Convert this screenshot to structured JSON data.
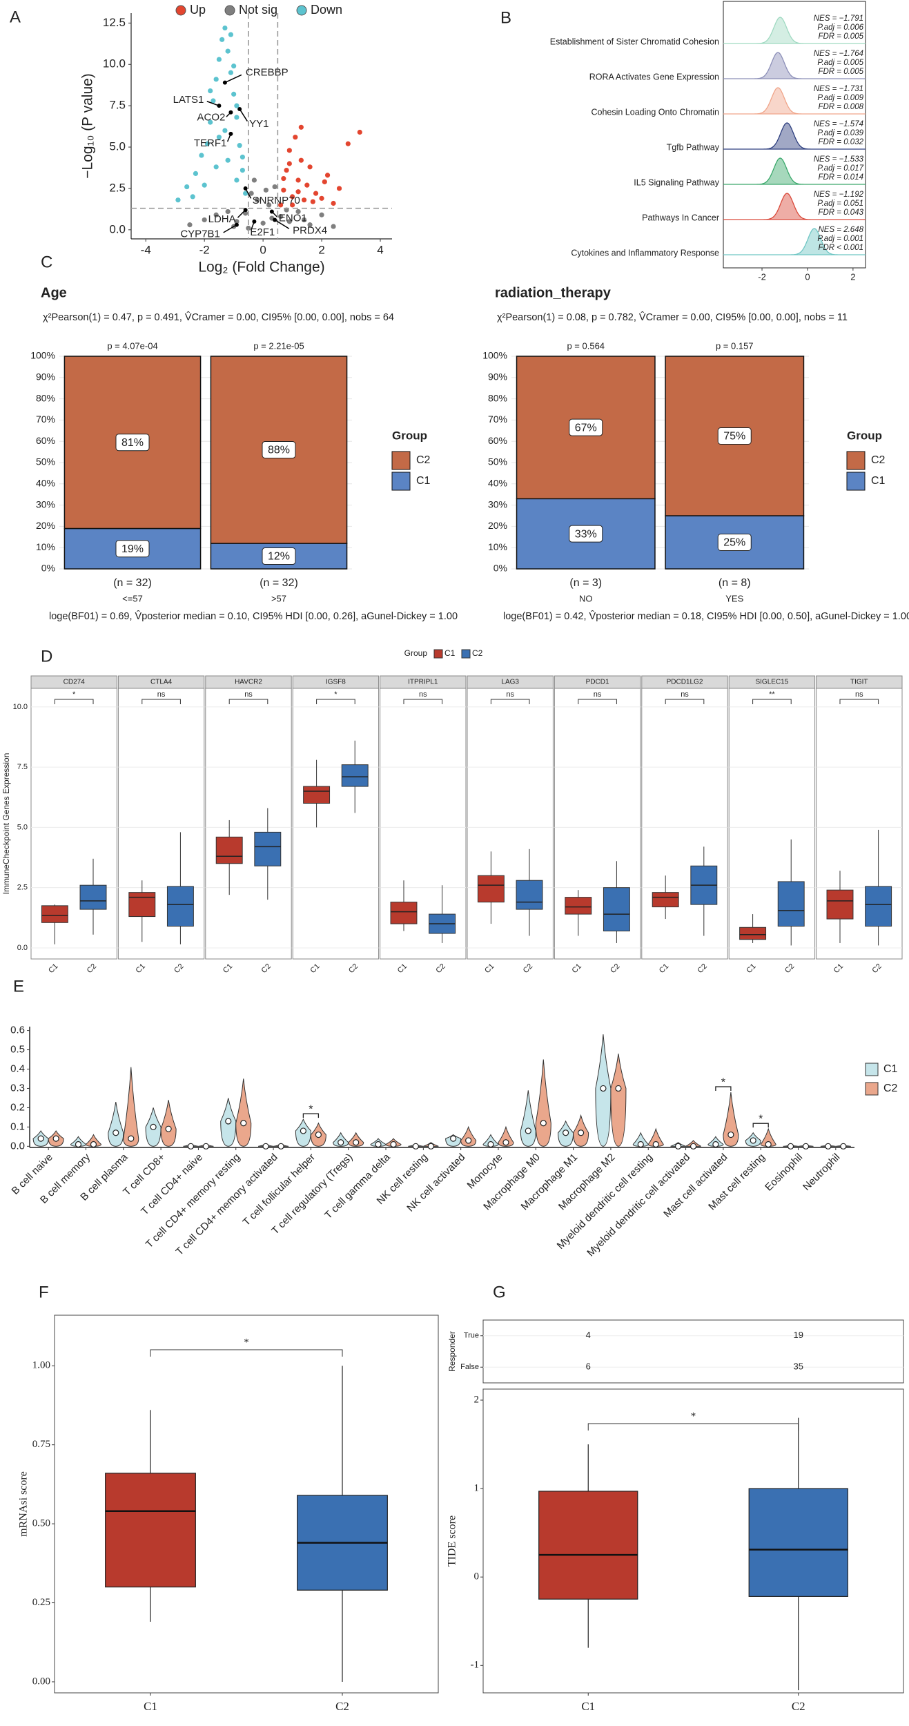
{
  "chart_data": [
    {
      "type": "scatter",
      "panel": "A",
      "xlabel": "Log₂ (Fold Change)",
      "ylabel": "−Log₁₀ (P value)",
      "legend": "top",
      "xlim": [
        -4.5,
        4.4
      ],
      "ylim": [
        -0.55,
        13.1
      ],
      "xticks": [
        -4,
        -2,
        0,
        2,
        4
      ],
      "yticks": [
        {
          "value": 0,
          "label": "0.0"
        },
        2.5,
        {
          "value": 5,
          "label": "5.0"
        },
        7.5,
        {
          "value": 10,
          "label": "10.0"
        },
        12.5
      ],
      "thresholds": {
        "x": [
          -0.5,
          0.5
        ],
        "y": 1.3
      },
      "series": [
        {
          "name": "Up",
          "color": "#e3452f",
          "x": [
            0.6,
            0.7,
            0.8,
            0.9,
            1.0,
            1.1,
            1.2,
            1.3,
            1.4,
            1.5,
            1.6,
            1.8,
            2.0,
            2.2,
            2.4,
            2.6,
            2.9,
            3.3,
            0.7,
            1.0,
            1.3,
            1.7,
            2.1,
            0.9,
            1.2
          ],
          "y": [
            1.5,
            2.4,
            3.6,
            4.8,
            2.0,
            5.6,
            3.0,
            4.2,
            1.8,
            2.7,
            3.8,
            2.2,
            1.9,
            3.3,
            1.6,
            2.5,
            5.2,
            5.9,
            3.1,
            1.5,
            6.2,
            1.7,
            2.9,
            4.0,
            2.3
          ]
        },
        {
          "name": "Not sig",
          "color": "#7f7f7f",
          "x": [
            -2.5,
            -2.0,
            -1.6,
            -1.2,
            -0.9,
            -0.6,
            -0.4,
            -0.2,
            0,
            0.2,
            0.4,
            0.6,
            0.9,
            1.2,
            1.6,
            2.0,
            2.4,
            -0.3,
            0.1,
            0.3,
            -1.0,
            0.8,
            -0.5,
            1.4
          ],
          "y": [
            0.3,
            0.6,
            0.9,
            1.1,
            0.5,
            1.0,
            2.2,
            1.8,
            0.4,
            1.5,
            2.6,
            0.8,
            0.5,
            1.1,
            0.3,
            0.9,
            0.2,
            3.0,
            2.4,
            0.7,
            0.2,
            1.2,
            0.1,
            0.6
          ]
        },
        {
          "name": "Down",
          "color": "#5cc3cf",
          "x": [
            -2.9,
            -2.6,
            -2.3,
            -2.1,
            -1.9,
            -1.8,
            -1.7,
            -1.6,
            -1.5,
            -1.4,
            -1.3,
            -1.2,
            -1.1,
            -1.0,
            -0.9,
            -0.8,
            -0.7,
            -0.6,
            -1.5,
            -1.2,
            -0.9,
            -2.0,
            -1.6,
            -1.1,
            -0.7,
            -1.8,
            -1.3,
            -0.9,
            -2.4,
            -1.0
          ],
          "y": [
            1.8,
            2.6,
            3.4,
            4.5,
            5.2,
            6.5,
            7.8,
            9.1,
            10.3,
            11.5,
            12.2,
            10.8,
            9.5,
            8.2,
            6.8,
            5.1,
            3.6,
            2.2,
            5.6,
            4.2,
            3.0,
            2.7,
            3.8,
            11.8,
            4.4,
            8.4,
            6.0,
            7.5,
            2.0,
            9.9
          ]
        }
      ],
      "labels": [
        {
          "text": "CREBBP",
          "x": -1.3,
          "y": 8.9
        },
        {
          "text": "LATS1",
          "x": -1.5,
          "y": 7.5
        },
        {
          "text": "ACO2",
          "x": -1.1,
          "y": 7.1
        },
        {
          "text": "YY1",
          "x": -0.8,
          "y": 7.3
        },
        {
          "text": "TERF1",
          "x": -1.1,
          "y": 5.8
        },
        {
          "text": "SNRNP70",
          "x": -0.6,
          "y": 2.5
        },
        {
          "text": "LDHA",
          "x": -0.6,
          "y": 1.2
        },
        {
          "text": "ENO1",
          "x": 0.3,
          "y": 1.1
        },
        {
          "text": "CYP7B1",
          "x": -0.9,
          "y": 0.3
        },
        {
          "text": "E2F1",
          "x": -0.3,
          "y": 0.5
        },
        {
          "text": "PRDX4",
          "x": 0.4,
          "y": 0.6
        }
      ]
    },
    {
      "type": "ridge",
      "panel": "B",
      "xlim": [
        -3.7,
        2.55
      ],
      "xticks": [
        -2,
        0,
        2
      ],
      "categories": [
        "Establishment of Sister Chromatid Cohesion",
        "RORA Activates Gene Expression",
        "Cohesin Loading Onto Chromatin",
        "Tgfb Pathway",
        "IL5 Signaling Pathway",
        "Pathways In Cancer",
        "Cytokines and Inflammatory Response"
      ],
      "colors": [
        "#9fd9c1",
        "#8c8fb8",
        "#f0a58a",
        "#2e3f7f",
        "#3aa86b",
        "#d9493a",
        "#6fc6c4"
      ],
      "peaks": [
        -1.2,
        -1.3,
        -1.3,
        -0.9,
        -1.2,
        -0.9,
        0.3
      ],
      "stats": [
        [
          "NES = −1.791",
          "P.adj = 0.006",
          "FDR = 0.005"
        ],
        [
          "NES = −1.764",
          "P.adj = 0.005",
          "FDR = 0.005"
        ],
        [
          "NES = −1.731",
          "P.adj = 0.009",
          "FDR = 0.008"
        ],
        [
          "NES = −1.574",
          "P.adj = 0.039",
          "FDR = 0.032"
        ],
        [
          "NES = −1.533",
          "P.adj = 0.017",
          "FDR = 0.014"
        ],
        [
          "NES = −1.192",
          "P.adj = 0.051",
          "FDR = 0.043"
        ],
        [
          "NES = 2.648",
          "P.adj = 0.001",
          "FDR < 0.001"
        ]
      ]
    },
    {
      "type": "stacked_bar",
      "panel": "C",
      "title": "Age",
      "subtitle": "χ²Pearson(1) = 0.47, p = 0.491, V̂Cramer = 0.00, CI95% [0.00, 0.00], nobs = 64",
      "caption": "loge(BF01) = 0.69, V̂posterior median = 0.10, CI95% HDI [0.00, 0.26], aGunel-Dickey = 1.00",
      "categories": [
        "<=57",
        ">57"
      ],
      "counts": [
        "(n = 32)",
        "(n = 32)"
      ],
      "pvalues": [
        "p = 4.07e-04",
        "p = 2.21e-05"
      ],
      "legend_title": "Group",
      "grid": true,
      "ylim": [
        0,
        100
      ],
      "yticks": [
        {
          "value": 0,
          "label": "0%"
        },
        {
          "value": 10,
          "label": "10%"
        },
        {
          "value": 20,
          "label": "20%"
        },
        {
          "value": 30,
          "label": "30%"
        },
        {
          "value": 40,
          "label": "40%"
        },
        {
          "value": 50,
          "label": "50%"
        },
        {
          "value": 60,
          "label": "60%"
        },
        {
          "value": 70,
          "label": "70%"
        },
        {
          "value": 80,
          "label": "80%"
        },
        {
          "value": 90,
          "label": "90%"
        },
        {
          "value": 100,
          "label": "100%"
        }
      ],
      "series": [
        {
          "name": "C1",
          "color": "#5b84c4",
          "values": [
            19,
            12
          ],
          "value_labels": [
            "19%",
            "12%"
          ]
        },
        {
          "name": "C2",
          "color": "#c36a47",
          "values": [
            81,
            88
          ],
          "value_labels": [
            "81%",
            "88%"
          ]
        }
      ]
    },
    {
      "type": "stacked_bar",
      "title": "radiation_therapy",
      "subtitle": "χ²Pearson(1) = 0.08, p = 0.782, V̂Cramer = 0.00, CI95% [0.00, 0.00], nobs = 11",
      "caption": "loge(BF01) = 0.42, V̂posterior median = 0.18, CI95% HDI [0.00, 0.50], aGunel-Dickey = 1.00",
      "categories": [
        "NO",
        "YES"
      ],
      "counts": [
        "(n = 3)",
        "(n = 8)"
      ],
      "pvalues": [
        "p = 0.564",
        "p = 0.157"
      ],
      "legend_title": "Group",
      "grid": true,
      "ylim": [
        0,
        100
      ],
      "yticks": [
        {
          "value": 0,
          "label": "0%"
        },
        {
          "value": 10,
          "label": "10%"
        },
        {
          "value": 20,
          "label": "20%"
        },
        {
          "value": 30,
          "label": "30%"
        },
        {
          "value": 40,
          "label": "40%"
        },
        {
          "value": 50,
          "label": "50%"
        },
        {
          "value": 60,
          "label": "60%"
        },
        {
          "value": 70,
          "label": "70%"
        },
        {
          "value": 80,
          "label": "80%"
        },
        {
          "value": 90,
          "label": "90%"
        },
        {
          "value": 100,
          "label": "100%"
        }
      ],
      "series": [
        {
          "name": "C1",
          "color": "#5b84c4",
          "values": [
            33,
            25
          ],
          "value_labels": [
            "33%",
            "25%"
          ]
        },
        {
          "name": "C2",
          "color": "#c36a47",
          "values": [
            67,
            75
          ],
          "value_labels": [
            "67%",
            "75%"
          ]
        }
      ]
    },
    {
      "type": "facet_box",
      "panel": "D",
      "ylabel": "ImmuneCheckpoint Genes Expression",
      "legend_title": "Group",
      "grid": true,
      "ylim": [
        -0.46,
        10.77
      ],
      "yticks": [
        {
          "value": 0,
          "label": "0.0"
        },
        2.5,
        {
          "value": 5,
          "label": "5.0"
        },
        7.5,
        {
          "value": 10,
          "label": "10.0"
        }
      ],
      "categories": [
        "CD274",
        "CTLA4",
        "HAVCR2",
        "IGSF8",
        "ITPRIPL1",
        "LAG3",
        "PDCD1",
        "PDCD1LG2",
        "SIGLEC15",
        "TIGIT"
      ],
      "significance": [
        "*",
        "ns",
        "ns",
        "*",
        "ns",
        "ns",
        "ns",
        "ns",
        "**",
        "ns"
      ],
      "series": [
        {
          "name": "C1",
          "color": "#b83a2d",
          "values": [
            [
              0.15,
              1.05,
              1.35,
              1.75,
              1.8
            ],
            [
              0.25,
              1.3,
              2.1,
              2.3,
              2.8
            ],
            [
              2.2,
              3.5,
              3.8,
              4.6,
              5.3
            ],
            [
              5.0,
              6.0,
              6.5,
              6.7,
              7.8
            ],
            [
              0.7,
              1.0,
              1.5,
              1.9,
              2.8
            ],
            [
              1.0,
              1.9,
              2.6,
              3.0,
              4.0
            ],
            [
              0.5,
              1.4,
              1.7,
              2.1,
              2.4
            ],
            [
              1.2,
              1.7,
              2.1,
              2.3,
              3.0
            ],
            [
              0.2,
              0.35,
              0.55,
              0.85,
              1.4
            ],
            [
              0.2,
              1.2,
              1.95,
              2.4,
              3.2
            ]
          ]
        },
        {
          "name": "C2",
          "color": "#3a70b2",
          "values": [
            [
              0.55,
              1.6,
              1.95,
              2.6,
              3.7
            ],
            [
              0.15,
              0.9,
              1.8,
              2.55,
              4.8
            ],
            [
              2.0,
              3.4,
              4.2,
              4.8,
              5.8
            ],
            [
              5.6,
              6.7,
              7.1,
              7.6,
              8.6
            ],
            [
              0.2,
              0.6,
              1.0,
              1.4,
              2.6
            ],
            [
              0.5,
              1.6,
              1.9,
              2.8,
              4.1
            ],
            [
              0.2,
              0.7,
              1.4,
              2.5,
              3.6
            ],
            [
              0.5,
              1.8,
              2.6,
              3.4,
              4.2
            ],
            [
              0.1,
              0.9,
              1.55,
              2.75,
              4.5
            ],
            [
              0.1,
              0.9,
              1.8,
              2.55,
              4.9
            ]
          ]
        }
      ]
    },
    {
      "type": "violin",
      "panel": "E",
      "legend": "right",
      "ylim": [
        -0.006,
        0.62
      ],
      "yticks": [
        {
          "value": 0,
          "label": "0.0"
        },
        0.1,
        0.2,
        0.3,
        0.4,
        0.5,
        0.6
      ],
      "categories": [
        "B cell naive",
        "B cell memory",
        "B cell plasma",
        "T cell CD8+",
        "T cell CD4+ naive",
        "T cell CD4+ memory resting",
        "T cell CD4+ memory activated",
        "T cell follicular helper",
        "T cell regulatory (Tregs)",
        "T cell gamma delta",
        "NK cell resting",
        "NK cell activated",
        "Monocyte",
        "Macrophage M0",
        "Macrophage M1",
        "Macrophage M2",
        "Myeloid dendritic cell resting",
        "Myeloid dendritic cell activated",
        "Mast cell activated",
        "Mast cell resting",
        "Eosinophil",
        "Neutrophil"
      ],
      "significance": [
        null,
        null,
        null,
        null,
        null,
        null,
        null,
        "*",
        null,
        null,
        null,
        null,
        null,
        null,
        null,
        null,
        null,
        null,
        "*",
        "*",
        null,
        null
      ],
      "series": [
        {
          "name": "C1",
          "color": "#c6e5ea",
          "values": [
            0.04,
            0.01,
            0.07,
            0.1,
            0,
            0.13,
            0,
            0.08,
            0.02,
            0.01,
            0,
            0.04,
            0.01,
            0.08,
            0.07,
            0.3,
            0.01,
            0,
            0.01,
            0.03,
            0,
            0
          ],
          "max": [
            0.08,
            0.05,
            0.23,
            0.2,
            0.01,
            0.25,
            0.01,
            0.14,
            0.07,
            0.04,
            0.01,
            0.06,
            0.06,
            0.29,
            0.13,
            0.58,
            0.07,
            0.02,
            0.05,
            0.07,
            0.005,
            0.005
          ]
        },
        {
          "name": "C2",
          "color": "#eaa78c",
          "values": [
            0.04,
            0.01,
            0.04,
            0.09,
            0,
            0.12,
            0,
            0.06,
            0.02,
            0.01,
            0,
            0.03,
            0.02,
            0.12,
            0.07,
            0.3,
            0.01,
            0,
            0.06,
            0.01,
            0,
            0
          ],
          "max": [
            0.08,
            0.06,
            0.41,
            0.24,
            0.01,
            0.35,
            0.01,
            0.12,
            0.07,
            0.04,
            0.02,
            0.1,
            0.1,
            0.45,
            0.16,
            0.48,
            0.09,
            0.03,
            0.28,
            0.09,
            0.005,
            0.005
          ]
        }
      ]
    },
    {
      "type": "box",
      "panel": "F",
      "ylabel": "mRNAsi score",
      "significance": "*",
      "ylim": [
        -0.035,
        1.16
      ],
      "yticks": [
        {
          "value": 0,
          "label": "0.00"
        },
        0.25,
        {
          "value": 0.5,
          "label": "0.50"
        },
        0.75,
        {
          "value": 1,
          "label": "1.00"
        }
      ],
      "categories": [
        "C1",
        "C2"
      ],
      "colors": [
        "#b83a2d",
        "#3a70b2"
      ],
      "values": [
        [
          0.19,
          0.3,
          0.54,
          0.66,
          0.86
        ],
        [
          0.0,
          0.29,
          0.44,
          0.59,
          1.0
        ]
      ]
    },
    {
      "type": "box",
      "panel": "G",
      "ylabel": "TIDE score",
      "significance": "*",
      "ylim": [
        -1.31,
        2.125
      ],
      "yticks": [
        -1,
        0,
        1,
        2
      ],
      "categories": [
        "C1",
        "C2"
      ],
      "colors": [
        "#b83a2d",
        "#3a70b2"
      ],
      "values": [
        [
          -0.8,
          -0.25,
          0.25,
          0.97,
          1.5
        ],
        [
          -1.28,
          -0.22,
          0.31,
          1.0,
          1.8
        ]
      ],
      "table": {
        "row_label": "Responder",
        "rows": [
          "True",
          "False"
        ],
        "values": [
          [
            4,
            19
          ],
          [
            6,
            35
          ]
        ]
      }
    }
  ]
}
